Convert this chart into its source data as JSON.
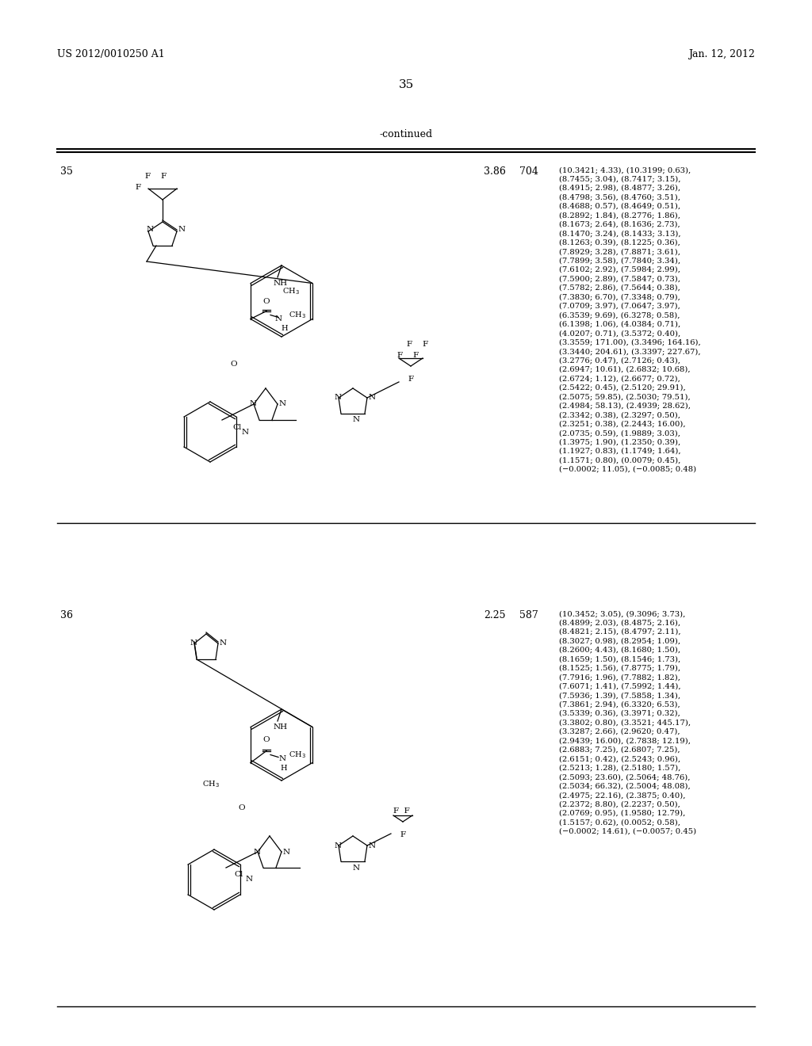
{
  "header_left": "US 2012/0010250 A1",
  "header_right": "Jan. 12, 2012",
  "page_number": "35",
  "continued_label": "-continued",
  "background_color": "#ffffff",
  "text_color": "#000000",
  "row1": {
    "compound_num": "35",
    "rt": "3.86",
    "ms": "704",
    "nmr_data": "(10.3421; 4.33), (10.3199; 0.63),\n(8.7455; 3.04), (8.7417; 3.15),\n(8.4915; 2.98), (8.4877; 3.26),\n(8.4798; 3.56), (8.4760; 3.51),\n(8.4688; 0.57), (8.4649; 0.51),\n(8.2892; 1.84), (8.2776; 1.86),\n(8.1673; 2.64), (8.1636; 2.73),\n(8.1470; 3.24), (8.1433; 3.13),\n(8.1263; 0.39), (8.1225; 0.36),\n(7.8929; 3.28), (7.8871; 3.61),\n(7.7899; 3.58), (7.7840; 3.34),\n(7.6102; 2.92), (7.5984; 2.99),\n(7.5900; 2.89), (7.5847; 0.73),\n(7.5782; 2.86), (7.5644; 0.38),\n(7.3830; 6.70), (7.3348; 0.79),\n(7.0709; 3.97), (7.0647; 3.97),\n(6.3539; 9.69), (6.3278; 0.58),\n(6.1398; 1.06), (4.0384; 0.71),\n(4.0207; 0.71), (3.5372; 0.40),\n(3.3559; 171.00), (3.3496; 164.16),\n(3.3440; 204.61), (3.3397; 227.67),\n(3.2776; 0.47), (2.7126; 0.43),\n(2.6947; 10.61), (2.6832; 10.68),\n(2.6724; 1.12), (2.6677; 0.72),\n(2.5422; 0.45), (2.5120; 29.91),\n(2.5075; 59.85), (2.5030; 79.51),\n(2.4984; 58.13), (2.4939; 28.62),\n(2.3342; 0.38), (2.3297; 0.50),\n(2.3251; 0.38), (2.2443; 16.00),\n(2.0735; 0.59), (1.9889; 3.03),\n(1.3975; 1.90), (1.2350; 0.39),\n(1.1927; 0.83), (1.1749; 1.64),\n(1.1571; 0.80), (0.0079; 0.45),\n(−0.0002; 11.05), (−0.0085; 0.48)"
  },
  "row2": {
    "compound_num": "36",
    "rt": "2.25",
    "ms": "587",
    "nmr_data": "(10.3452; 3.05), (9.3096; 3.73),\n(8.4899; 2.03), (8.4875; 2.16),\n(8.4821; 2.15), (8.4797; 2.11),\n(8.3027; 0.98), (8.2954; 1.09),\n(8.2600; 4.43), (8.1680; 1.50),\n(8.1659; 1.50), (8.1546; 1.73),\n(8.1525; 1.56), (7.8775; 1.79),\n(7.7916; 1.96), (7.7882; 1.82),\n(7.6071; 1.41), (7.5992; 1.44),\n(7.5936; 1.39), (7.5858; 1.34),\n(7.3861; 2.94), (6.3320; 6.53),\n(3.5339; 0.36), (3.3971; 0.32),\n(3.3802; 0.80), (3.3521; 445.17),\n(3.3287; 2.66), (2.9620; 0.47),\n(2.9439; 16.00), (2.7838; 12.19),\n(2.6883; 7.25), (2.6807; 7.25),\n(2.6151; 0.42), (2.5243; 0.96),\n(2.5213; 1.28), (2.5180; 1.57),\n(2.5093; 23.60), (2.5064; 48.76),\n(2.5034; 66.32), (2.5004; 48.08),\n(2.4975; 22.16), (2.3875; 0.40),\n(2.2372; 8.80), (2.2237; 0.50),\n(2.0769; 0.95), (1.9580; 12.79),\n(1.5157; 0.62), (0.0052; 0.58),\n(−0.0002; 14.61), (−0.0057; 0.45)"
  }
}
